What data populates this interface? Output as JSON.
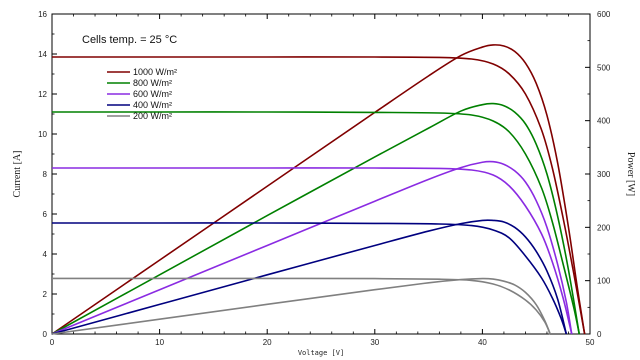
{
  "chart_data": {
    "type": "line",
    "xlabel": "Voltage [V]",
    "ylabel": "Current [A]",
    "y2label": "Power [W]",
    "xlim": [
      0,
      50
    ],
    "ylim": [
      0,
      16
    ],
    "y2lim": [
      0,
      600
    ],
    "xticks": [
      "0",
      "10",
      "20",
      "30",
      "40",
      "50"
    ],
    "yticks": [
      "0",
      "2",
      "4",
      "6",
      "8",
      "10",
      "12",
      "14",
      "16"
    ],
    "y2ticks": [
      "0",
      "100",
      "200",
      "300",
      "400",
      "500",
      "600"
    ],
    "annotation": "Cells temp. = 25 °C",
    "grid": false,
    "legend_position": "top-left",
    "series": [
      {
        "name": "1000 W/m²",
        "color": "#800000",
        "iv": [
          [
            0,
            13.85
          ],
          [
            10,
            13.85
          ],
          [
            20,
            13.85
          ],
          [
            30,
            13.85
          ],
          [
            36,
            13.83
          ],
          [
            39,
            13.75
          ],
          [
            41,
            13.5
          ],
          [
            42.5,
            13.0
          ],
          [
            44,
            12.0
          ],
          [
            45.5,
            10.2
          ],
          [
            46.5,
            8.3
          ],
          [
            47.5,
            5.8
          ],
          [
            48.5,
            3.0
          ],
          [
            49.5,
            0
          ]
        ],
        "pv": [
          [
            0,
            0
          ],
          [
            10,
            138.5
          ],
          [
            20,
            277
          ],
          [
            30,
            415.5
          ],
          [
            35,
            484
          ],
          [
            38,
            522
          ],
          [
            40,
            538
          ],
          [
            41,
            542
          ],
          [
            42,
            540
          ],
          [
            43,
            530
          ],
          [
            44,
            508
          ],
          [
            45,
            470
          ],
          [
            46,
            410
          ],
          [
            47,
            320
          ],
          [
            48,
            200
          ],
          [
            48.8,
            90
          ],
          [
            49.5,
            0
          ]
        ]
      },
      {
        "name": "800 W/m²",
        "color": "#008000",
        "iv": [
          [
            0,
            11.1
          ],
          [
            10,
            11.1
          ],
          [
            20,
            11.1
          ],
          [
            30,
            11.08
          ],
          [
            36,
            11.05
          ],
          [
            39,
            10.95
          ],
          [
            41,
            10.65
          ],
          [
            42.5,
            10.1
          ],
          [
            44,
            9.0
          ],
          [
            45.5,
            7.3
          ],
          [
            46.5,
            5.6
          ],
          [
            47.5,
            3.5
          ],
          [
            48.5,
            1.3
          ],
          [
            49,
            0
          ]
        ],
        "pv": [
          [
            0,
            0
          ],
          [
            10,
            111
          ],
          [
            20,
            222
          ],
          [
            30,
            332
          ],
          [
            35,
            386
          ],
          [
            38,
            418
          ],
          [
            40,
            430
          ],
          [
            41,
            432
          ],
          [
            42,
            428
          ],
          [
            43,
            416
          ],
          [
            44,
            394
          ],
          [
            45,
            356
          ],
          [
            46,
            300
          ],
          [
            47,
            220
          ],
          [
            48,
            120
          ],
          [
            49,
            0
          ]
        ]
      },
      {
        "name": "600 W/m²",
        "color": "#8a2be2",
        "iv": [
          [
            0,
            8.3
          ],
          [
            10,
            8.3
          ],
          [
            20,
            8.3
          ],
          [
            30,
            8.3
          ],
          [
            36,
            8.28
          ],
          [
            39,
            8.2
          ],
          [
            41,
            7.95
          ],
          [
            42.5,
            7.4
          ],
          [
            44,
            6.4
          ],
          [
            45.5,
            5.0
          ],
          [
            46.5,
            3.6
          ],
          [
            47.5,
            1.8
          ],
          [
            48.3,
            0
          ]
        ],
        "pv": [
          [
            0,
            0
          ],
          [
            10,
            83
          ],
          [
            20,
            166
          ],
          [
            30,
            249
          ],
          [
            35,
            290
          ],
          [
            38,
            312
          ],
          [
            40,
            322
          ],
          [
            41,
            323
          ],
          [
            42,
            318
          ],
          [
            43,
            306
          ],
          [
            44,
            285
          ],
          [
            45,
            250
          ],
          [
            46,
            200
          ],
          [
            47,
            130
          ],
          [
            47.8,
            60
          ],
          [
            48.3,
            0
          ]
        ]
      },
      {
        "name": "400 W/m²",
        "color": "#00007f",
        "iv": [
          [
            0,
            5.55
          ],
          [
            10,
            5.55
          ],
          [
            20,
            5.55
          ],
          [
            30,
            5.53
          ],
          [
            36,
            5.5
          ],
          [
            39,
            5.42
          ],
          [
            41,
            5.2
          ],
          [
            42.5,
            4.8
          ],
          [
            44,
            3.9
          ],
          [
            45.5,
            2.8
          ],
          [
            46.5,
            1.8
          ],
          [
            47.3,
            0.8
          ],
          [
            47.8,
            0
          ]
        ],
        "pv": [
          [
            0,
            0
          ],
          [
            10,
            55.5
          ],
          [
            20,
            111
          ],
          [
            30,
            166
          ],
          [
            35,
            193
          ],
          [
            38,
            207
          ],
          [
            40,
            213
          ],
          [
            41,
            213
          ],
          [
            42,
            210
          ],
          [
            43,
            200
          ],
          [
            44,
            182
          ],
          [
            45,
            155
          ],
          [
            46,
            118
          ],
          [
            47,
            65
          ],
          [
            47.8,
            0
          ]
        ]
      },
      {
        "name": "200 W/m²",
        "color": "#808080",
        "iv": [
          [
            0,
            2.78
          ],
          [
            10,
            2.78
          ],
          [
            20,
            2.78
          ],
          [
            30,
            2.77
          ],
          [
            36,
            2.74
          ],
          [
            39,
            2.68
          ],
          [
            41,
            2.5
          ],
          [
            42.5,
            2.2
          ],
          [
            44,
            1.7
          ],
          [
            45,
            1.2
          ],
          [
            45.8,
            0.6
          ],
          [
            46.3,
            0
          ]
        ],
        "pv": [
          [
            0,
            0
          ],
          [
            10,
            27.8
          ],
          [
            20,
            55.6
          ],
          [
            30,
            83
          ],
          [
            35,
            96
          ],
          [
            38,
            102
          ],
          [
            40,
            104
          ],
          [
            41,
            103
          ],
          [
            42,
            99
          ],
          [
            43,
            92
          ],
          [
            44,
            78
          ],
          [
            45,
            55
          ],
          [
            45.8,
            25
          ],
          [
            46.3,
            0
          ]
        ]
      }
    ]
  }
}
